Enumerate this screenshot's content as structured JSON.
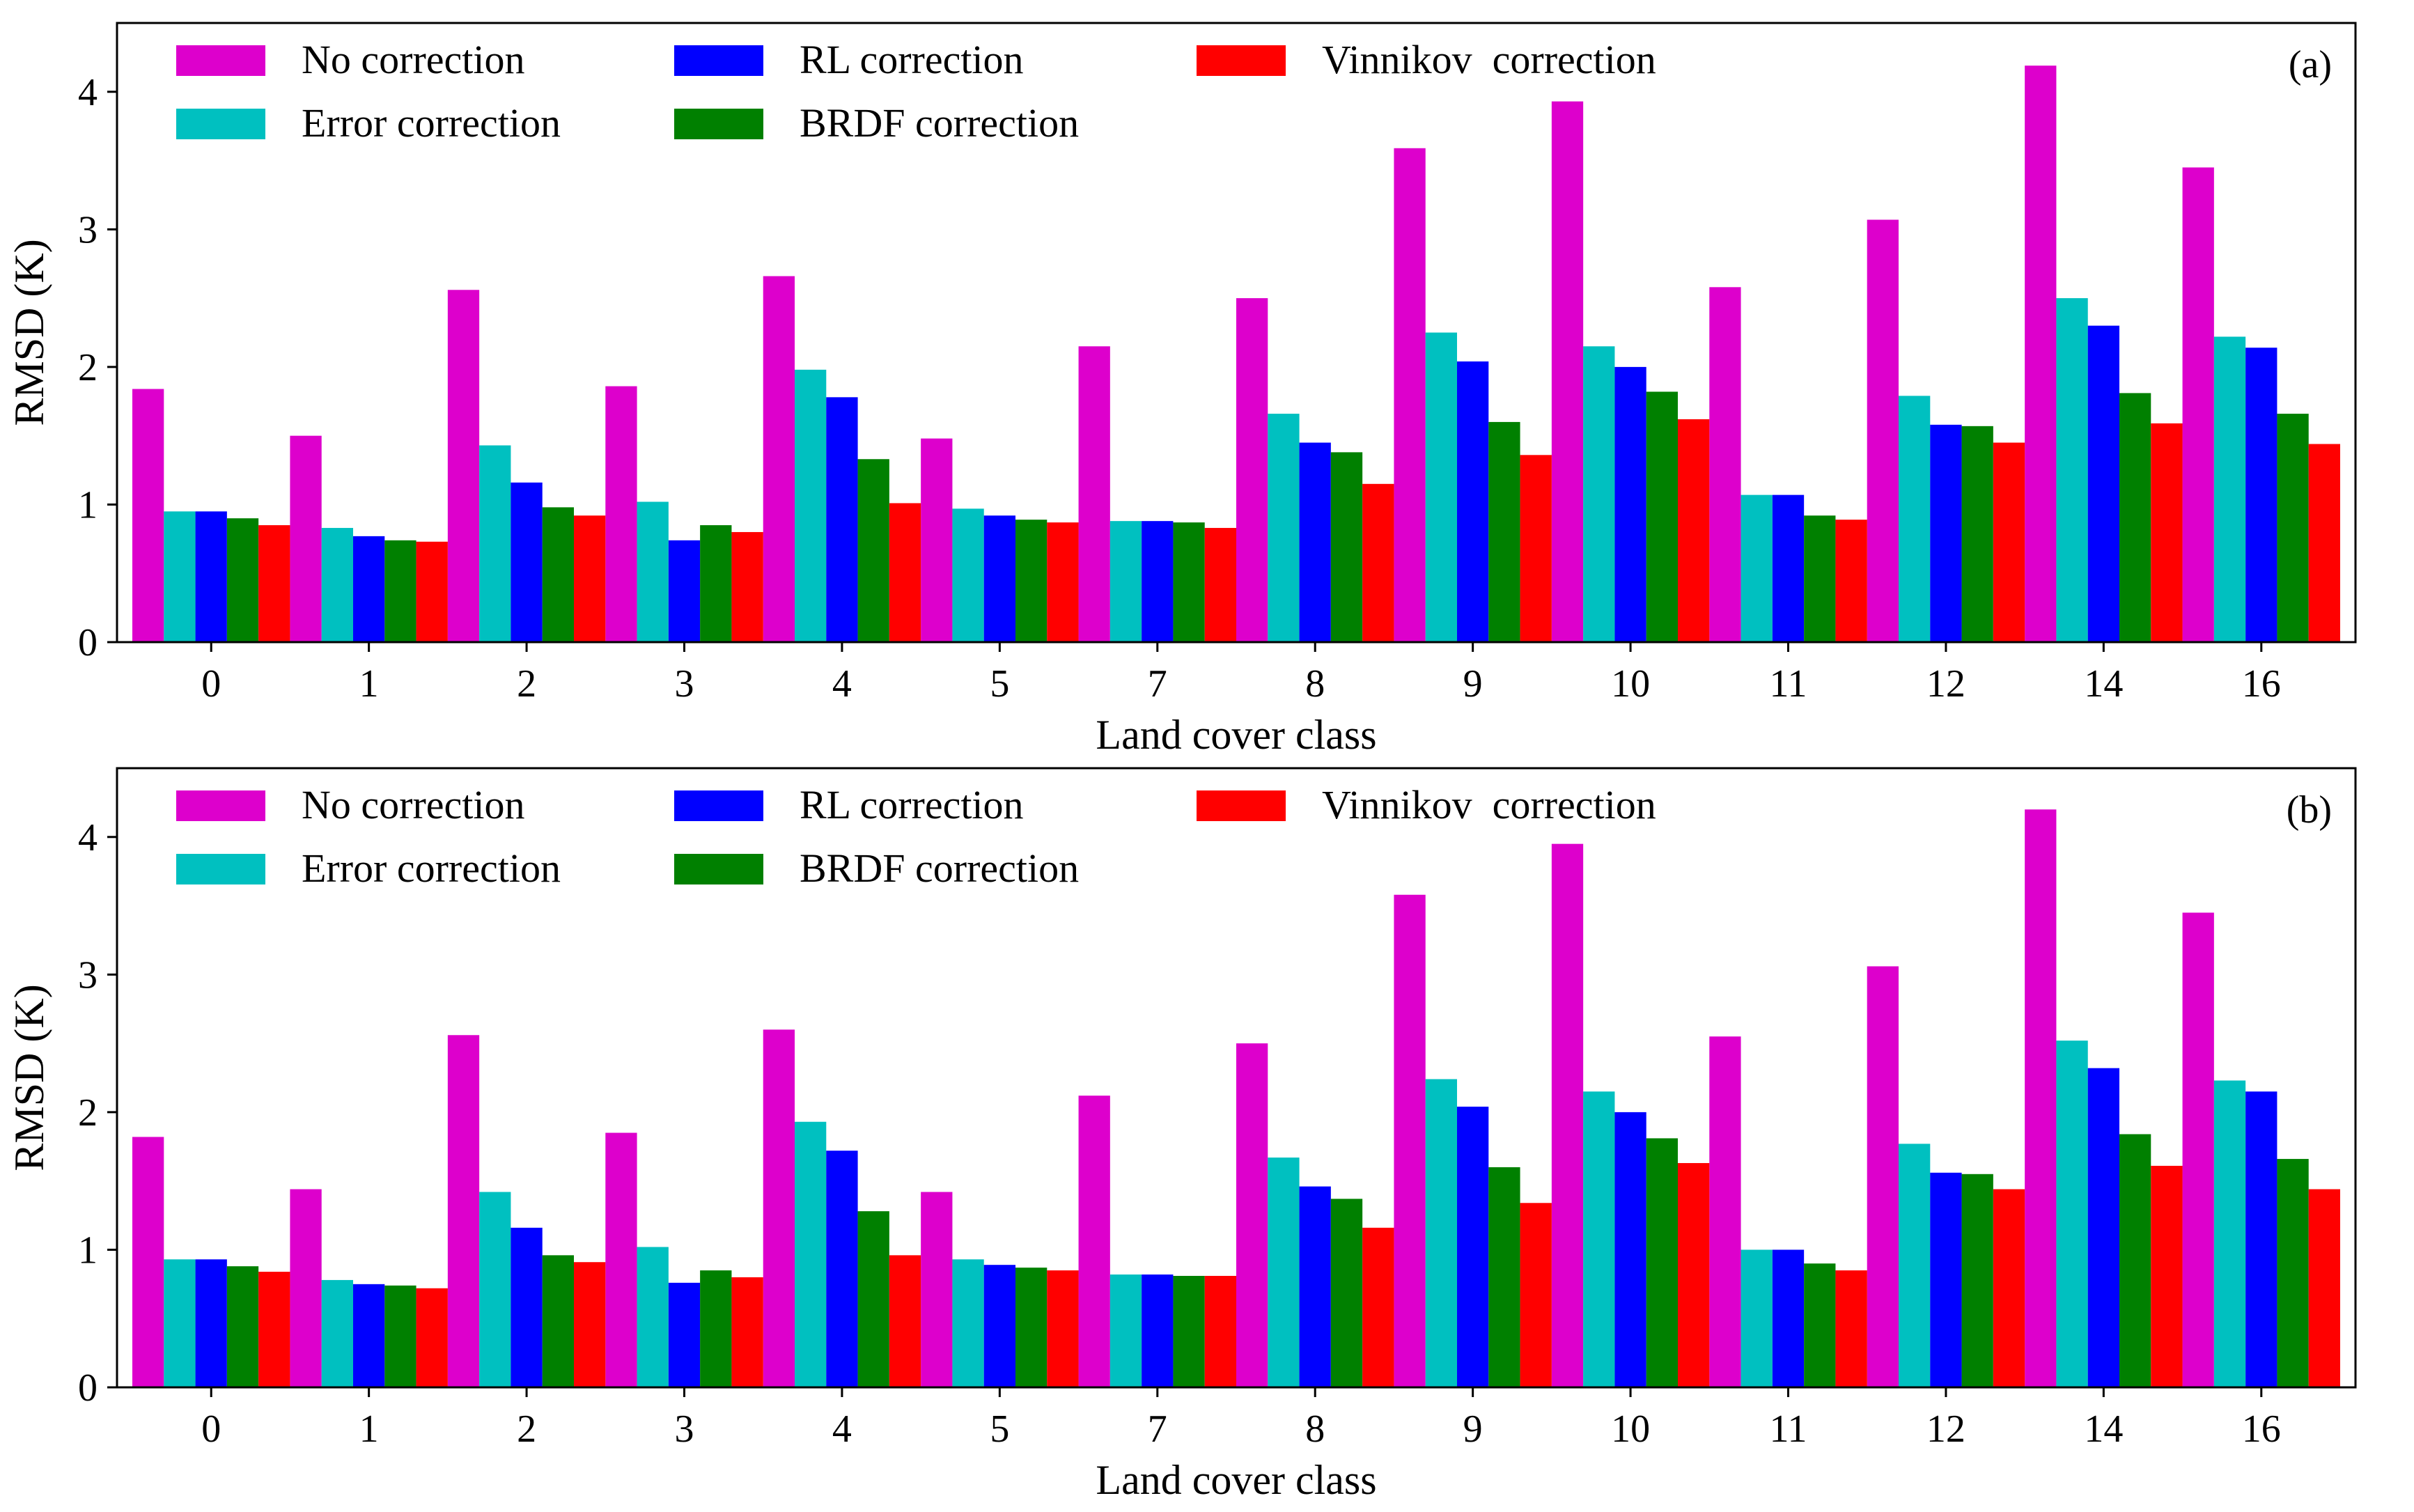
{
  "chart_data": [
    {
      "type": "bar",
      "panel_label": "(a)",
      "xlabel": "Land cover class",
      "ylabel": "RMSD (K)",
      "ylim": [
        0,
        4.5
      ],
      "yticks": [
        0,
        1,
        2,
        3,
        4
      ],
      "categories": [
        "0",
        "1",
        "2",
        "3",
        "4",
        "5",
        "7",
        "8",
        "9",
        "10",
        "11",
        "12",
        "14",
        "16"
      ],
      "legend_position": "top-left",
      "series": [
        {
          "name": "No correction",
          "color": "#dd00cc",
          "values": [
            1.84,
            1.5,
            2.56,
            1.86,
            2.66,
            1.48,
            2.15,
            2.5,
            3.59,
            3.93,
            2.58,
            3.07,
            4.19,
            3.45
          ]
        },
        {
          "name": "Error correction",
          "color": "#00c0c0",
          "values": [
            0.95,
            0.83,
            1.43,
            1.02,
            1.98,
            0.97,
            0.88,
            1.66,
            2.25,
            2.15,
            1.07,
            1.79,
            2.5,
            2.22
          ]
        },
        {
          "name": "RL correction",
          "color": "#0000ff",
          "values": [
            0.95,
            0.77,
            1.16,
            0.74,
            1.78,
            0.92,
            0.88,
            1.45,
            2.04,
            2.0,
            1.07,
            1.58,
            2.3,
            2.14
          ]
        },
        {
          "name": "BRDF correction",
          "color": "#008000",
          "values": [
            0.9,
            0.74,
            0.98,
            0.85,
            1.33,
            0.89,
            0.87,
            1.38,
            1.6,
            1.82,
            0.92,
            1.57,
            1.81,
            1.66
          ]
        },
        {
          "name": "Vinnikov  correction",
          "color": "#ff0000",
          "values": [
            0.85,
            0.73,
            0.92,
            0.8,
            1.01,
            0.87,
            0.83,
            1.15,
            1.36,
            1.62,
            0.89,
            1.45,
            1.59,
            1.44
          ]
        }
      ]
    },
    {
      "type": "bar",
      "panel_label": "(b)",
      "xlabel": "Land cover class",
      "ylabel": "RMSD (K)",
      "ylim": [
        0,
        4.5
      ],
      "yticks": [
        0,
        1,
        2,
        3,
        4
      ],
      "categories": [
        "0",
        "1",
        "2",
        "3",
        "4",
        "5",
        "7",
        "8",
        "9",
        "10",
        "11",
        "12",
        "14",
        "16"
      ],
      "legend_position": "top-left",
      "series": [
        {
          "name": "No correction",
          "color": "#dd00cc",
          "values": [
            1.82,
            1.44,
            2.56,
            1.85,
            2.6,
            1.42,
            2.12,
            2.5,
            3.58,
            3.95,
            2.55,
            3.06,
            4.2,
            3.45
          ]
        },
        {
          "name": "Error correction",
          "color": "#00c0c0",
          "values": [
            0.93,
            0.78,
            1.42,
            1.02,
            1.93,
            0.93,
            0.82,
            1.67,
            2.24,
            2.15,
            1.0,
            1.77,
            2.52,
            2.23
          ]
        },
        {
          "name": "RL correction",
          "color": "#0000ff",
          "values": [
            0.93,
            0.75,
            1.16,
            0.76,
            1.72,
            0.89,
            0.82,
            1.46,
            2.04,
            2.0,
            1.0,
            1.56,
            2.32,
            2.15
          ]
        },
        {
          "name": "BRDF correction",
          "color": "#008000",
          "values": [
            0.88,
            0.74,
            0.96,
            0.85,
            1.28,
            0.87,
            0.81,
            1.37,
            1.6,
            1.81,
            0.9,
            1.55,
            1.84,
            1.66
          ]
        },
        {
          "name": "Vinnikov  correction",
          "color": "#ff0000",
          "values": [
            0.84,
            0.72,
            0.91,
            0.8,
            0.96,
            0.85,
            0.81,
            1.16,
            1.34,
            1.63,
            0.85,
            1.44,
            1.61,
            1.44
          ]
        }
      ]
    }
  ]
}
